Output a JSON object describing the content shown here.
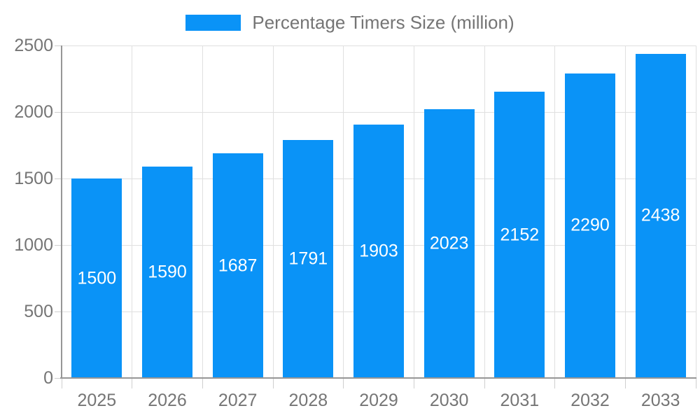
{
  "legend": {
    "label": "Percentage Timers Size (million)"
  },
  "chart_data": {
    "type": "bar",
    "title": "Percentage Timers Size (million)",
    "categories": [
      "2025",
      "2026",
      "2027",
      "2028",
      "2029",
      "2030",
      "2031",
      "2032",
      "2033"
    ],
    "series": [
      {
        "name": "Percentage Timers Size (million)",
        "values": [
          1500,
          1590,
          1687,
          1791,
          1903,
          2023,
          2152,
          2290,
          2438
        ]
      }
    ],
    "values": [
      1500,
      1590,
      1687,
      1791,
      1903,
      2023,
      2152,
      2290,
      2438
    ],
    "bar_value_labels": [
      "1500",
      "1590",
      "1687",
      "1791",
      "1903",
      "2023",
      "2152",
      "2290",
      "2438"
    ],
    "xlabel": "",
    "ylabel": "",
    "ylim": [
      0,
      2500
    ],
    "yticks": [
      0,
      500,
      1000,
      1500,
      2000,
      2500
    ],
    "grid": true,
    "legend_position": "top-center",
    "value_label_position": "inside-center",
    "colors": {
      "bar": "#0a93f7",
      "bar_label": "#ffffff",
      "axis_text": "#757575",
      "legend_text": "#757575",
      "gridline": "#e0e0e0",
      "tick": "#cfcfcf",
      "axis_line": "#969696",
      "background": "#ffffff"
    }
  }
}
